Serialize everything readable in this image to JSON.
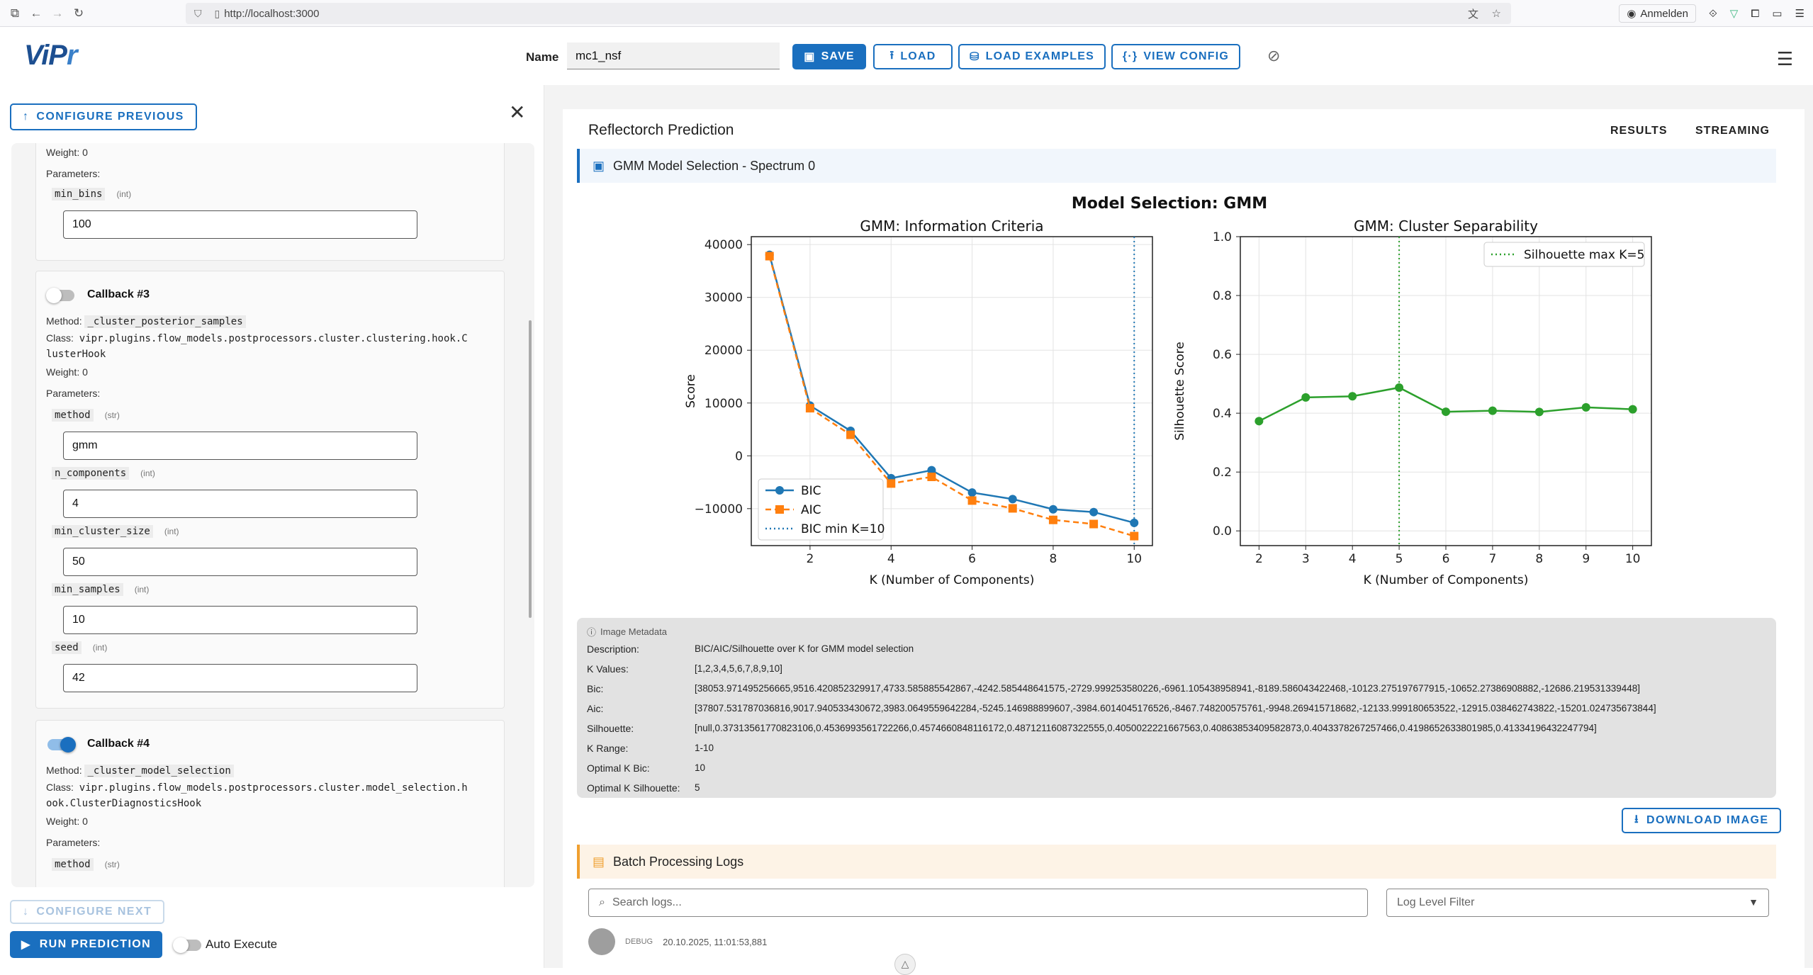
{
  "browser": {
    "url": "http://localhost:3000",
    "sign_in": "Anmelden"
  },
  "header": {
    "logo": "ViPr",
    "name_label": "Name",
    "name_value": "mc1_nsf",
    "buttons": {
      "save": "SAVE",
      "load": "LOAD",
      "load_examples": "LOAD EXAMPLES",
      "view_config": "VIEW CONFIG"
    }
  },
  "left": {
    "configure_previous": "CONFIGURE PREVIOUS",
    "configure_next": "CONFIGURE NEXT",
    "run_prediction": "RUN PREDICTION",
    "auto_execute": "Auto Execute",
    "top_card": {
      "weight_label": "Weight:",
      "weight": "0",
      "params_label": "Parameters:",
      "params": [
        {
          "name": "min_bins",
          "type": "(int)",
          "value": "100"
        }
      ]
    },
    "callback3": {
      "title": "Callback #3",
      "enabled": false,
      "method_label": "Method:",
      "method": "_cluster_posterior_samples",
      "class_label": "Class:",
      "class_line1": "vipr.plugins.flow_models.postprocessors.cluster.clustering.hook.C",
      "class_line2": "lusterHook",
      "weight_label": "Weight:",
      "weight": "0",
      "params_label": "Parameters:",
      "params": [
        {
          "name": "method",
          "type": "(str)",
          "value": "gmm"
        },
        {
          "name": "n_components",
          "type": "(int)",
          "value": "4"
        },
        {
          "name": "min_cluster_size",
          "type": "(int)",
          "value": "50"
        },
        {
          "name": "min_samples",
          "type": "(int)",
          "value": "10"
        },
        {
          "name": "seed",
          "type": "(int)",
          "value": "42"
        }
      ]
    },
    "callback4": {
      "title": "Callback #4",
      "enabled": true,
      "method_label": "Method:",
      "method": "_cluster_model_selection",
      "class_label": "Class:",
      "class_line1": "vipr.plugins.flow_models.postprocessors.cluster.model_selection.h",
      "class_line2": "ook.ClusterDiagnosticsHook",
      "weight_label": "Weight:",
      "weight": "0",
      "params_label": "Parameters:",
      "params": [
        {
          "name": "method",
          "type": "(str)"
        }
      ]
    }
  },
  "main": {
    "title": "Reflectorch Prediction",
    "tabs": [
      "RESULTS",
      "STREAMING"
    ],
    "figure_header": "GMM Model Selection - Spectrum 0",
    "download_image": "DOWNLOAD IMAGE",
    "logs_title": "Batch Processing Logs",
    "log_search_placeholder": "Search logs...",
    "log_level_filter": "Log Level Filter",
    "log_entry": {
      "level": "DEBUG",
      "timestamp": "20.10.2025, 11:01:53,881"
    }
  },
  "metadata": {
    "heading": "Image Metadata",
    "rows": [
      {
        "key": "Description:",
        "value": "BIC/AIC/Silhouette over K for GMM model selection"
      },
      {
        "key": "K Values:",
        "value": "[1,2,3,4,5,6,7,8,9,10]"
      },
      {
        "key": "Bic:",
        "value": "[38053.971495256665,9516.420852329917,4733.585885542867,-4242.585448641575,-2729.999253580226,-6961.105438958941,-8189.586043422468,-10123.275197677915,-10652.27386908882,-12686.219531339448]"
      },
      {
        "key": "Aic:",
        "value": "[37807.531787036816,9017.940533430672,3983.0649559642284,-5245.146988899607,-3984.6014045176526,-8467.748200575761,-9948.269415718682,-12133.999180653522,-12915.038462743822,-15201.024735673844]"
      },
      {
        "key": "Silhouette:",
        "value": "[null,0.37313561770823106,0.4536993561722266,0.4574660848116172,0.48712116087322555,0.4050022221667563,0.40863853409582873,0.4043378267257466,0.4198652633801985,0.41334196432247794]"
      },
      {
        "key": "K Range:",
        "value": "1-10"
      },
      {
        "key": "Optimal K Bic:",
        "value": "10"
      },
      {
        "key": "Optimal K Silhouette:",
        "value": "5"
      }
    ]
  },
  "chart_data": [
    {
      "type": "line",
      "title": "GMM: Information Criteria",
      "suptitle": "Model Selection: GMM",
      "xlabel": "K (Number of Components)",
      "ylabel": "Score",
      "x": [
        1,
        2,
        3,
        4,
        5,
        6,
        7,
        8,
        9,
        10
      ],
      "xticks": [
        "2",
        "4",
        "6",
        "8",
        "10"
      ],
      "yticks": [
        "40000",
        "30000",
        "20000",
        "10000",
        "0",
        "−10000"
      ],
      "ylim": [
        -17000,
        41500
      ],
      "series": [
        {
          "name": "BIC",
          "color": "#1f77b4",
          "marker": "circle",
          "values": [
            38053.97,
            9516.42,
            4733.59,
            -4242.59,
            -2730.0,
            -6961.11,
            -8189.59,
            -10123.28,
            -10652.27,
            -12686.22
          ]
        },
        {
          "name": "AIC",
          "color": "#ff7f0e",
          "marker": "square",
          "dashed": true,
          "values": [
            37807.53,
            9017.94,
            3983.06,
            -5245.15,
            -3984.6,
            -8467.75,
            -9948.27,
            -12134.0,
            -12915.04,
            -15201.02
          ]
        }
      ],
      "vline": {
        "name": "BIC min K=10",
        "x": 10,
        "color": "#1f77b4"
      },
      "legend": "lower-left",
      "grid": true
    },
    {
      "type": "line",
      "title": "GMM: Cluster Separability",
      "xlabel": "K (Number of Components)",
      "ylabel": "Silhouette Score",
      "x": [
        2,
        3,
        4,
        5,
        6,
        7,
        8,
        9,
        10
      ],
      "xticks": [
        "2",
        "3",
        "4",
        "5",
        "6",
        "7",
        "8",
        "9",
        "10"
      ],
      "yticks": [
        "1.0",
        "0.8",
        "0.6",
        "0.4",
        "0.2",
        "0.0"
      ],
      "ylim": [
        -0.05,
        1.0
      ],
      "series": [
        {
          "name": "Silhouette",
          "color": "#2ca02c",
          "values": [
            0.3731,
            0.4537,
            0.4575,
            0.4871,
            0.405,
            0.4086,
            0.4043,
            0.4199,
            0.4133
          ]
        }
      ],
      "vline": {
        "name": "Silhouette max K=5",
        "x": 5,
        "color": "#2ca02c"
      },
      "legend": "top-right",
      "grid": true
    }
  ]
}
